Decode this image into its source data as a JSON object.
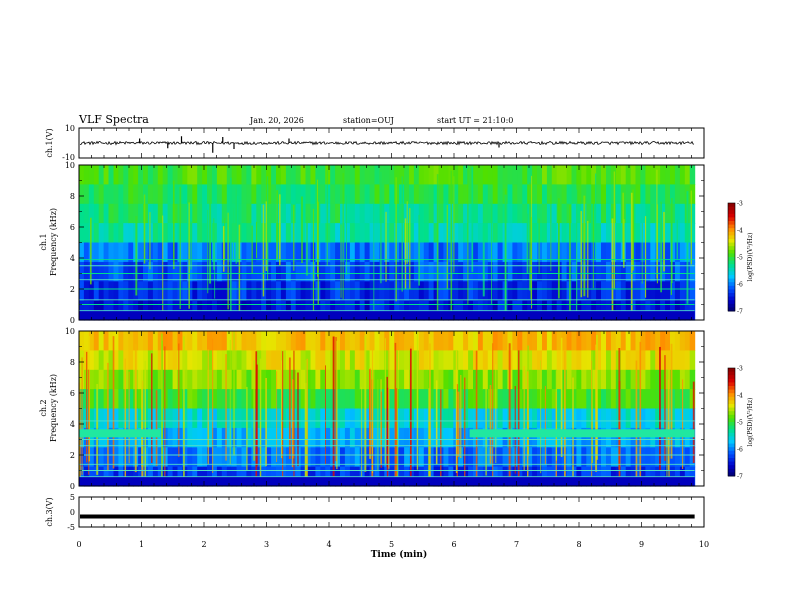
{
  "header": {
    "title": "VLF Spectra",
    "date": "Jan. 20, 2026",
    "station": "station=OUJ",
    "start_ut": "start UT = 21:10:0"
  },
  "chart_data": [
    {
      "type": "line",
      "name": "ch.1 waveform",
      "ylabel": "ch.1(V)",
      "ylim": [
        -10,
        10
      ],
      "yticks": [
        "10",
        "-10"
      ],
      "baseline": 0,
      "noise_amplitude": 1.0,
      "spikes": [
        {
          "x": 1.64,
          "y": 4.5
        },
        {
          "x": 2.14,
          "y": -6.5
        },
        {
          "x": 2.3,
          "y": 4.0
        },
        {
          "x": 2.48,
          "y": -4.0
        },
        {
          "x": 0.97,
          "y": 3.0
        },
        {
          "x": 1.42,
          "y": -3.5
        },
        {
          "x": 3.36,
          "y": 3.0
        },
        {
          "x": 6.72,
          "y": -3.0
        }
      ]
    },
    {
      "type": "heatmap",
      "name": "ch.1 spectrogram",
      "ylabel": "ch.1 Frequency (kHz)",
      "ylim": [
        0,
        10
      ],
      "yticks": [
        "0",
        "2",
        "4",
        "6",
        "8",
        "10"
      ],
      "colorbar": {
        "label": "log(PSD)(V²/Hz)",
        "range": [
          -7,
          -3
        ],
        "ticks": [
          "-3",
          "-4",
          "-5",
          "-6",
          "-7"
        ]
      },
      "bands_khz": [
        0.6,
        1.0,
        1.3,
        2.0,
        2.6,
        3.0,
        3.5,
        3.9
      ],
      "notes": "blue/dark below ~5 kHz, green-cyan above with vertical sferic streaks"
    },
    {
      "type": "heatmap",
      "name": "ch.2 spectrogram",
      "ylabel": "ch.2 Frequency (kHz)",
      "ylim": [
        0,
        10
      ],
      "yticks": [
        "0",
        "2",
        "4",
        "6",
        "8",
        "10"
      ],
      "colorbar": {
        "label": "log(PSD)(V²/Hz)",
        "range": [
          -7,
          -3
        ],
        "ticks": [
          "-3",
          "-4",
          "-5",
          "-6",
          "-7"
        ]
      },
      "tone_khz": 3.4,
      "tone_segments_min": [
        [
          0.0,
          1.3
        ],
        [
          6.25,
          9.85
        ]
      ],
      "notes": "higher intensity, yellow/red above ~6 kHz"
    },
    {
      "type": "line",
      "name": "ch.3 waveform",
      "ylabel": "ch.3(V)",
      "ylim": [
        -5,
        5
      ],
      "yticks": [
        "5",
        "0",
        "-5"
      ],
      "baseline": -1.5
    }
  ],
  "xaxis": {
    "label": "Time (min)",
    "range": [
      0,
      10
    ],
    "data_end": 9.85,
    "ticks": [
      "0",
      "1",
      "2",
      "3",
      "4",
      "5",
      "6",
      "7",
      "8",
      "9",
      "10"
    ]
  },
  "colors": {
    "scale": [
      "#000060",
      "#0000c8",
      "#0050ff",
      "#00c8ff",
      "#00e08c",
      "#50e000",
      "#e6e600",
      "#ff8c00",
      "#dc0000",
      "#8c0000"
    ]
  }
}
